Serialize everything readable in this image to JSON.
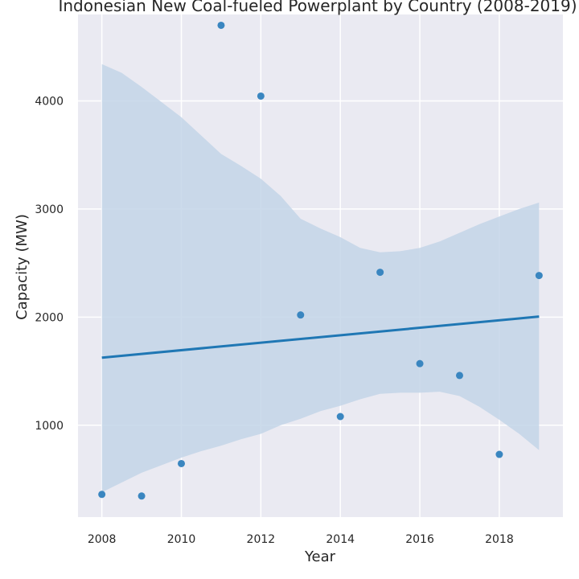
{
  "chart_data": {
    "type": "scatter",
    "title": "Indonesian New Coal-fueled Powerplant by Country (2008-2019)",
    "xlabel": "Year",
    "ylabel": "Capacity (MW)",
    "xlim": [
      2007.4,
      2019.6
    ],
    "ylim": [
      150,
      4800
    ],
    "xticks": [
      2008,
      2010,
      2012,
      2014,
      2016,
      2018
    ],
    "yticks": [
      1000,
      2000,
      3000,
      4000
    ],
    "grid": true,
    "legend": "none",
    "points": [
      {
        "x": 2008,
        "y": 360
      },
      {
        "x": 2009,
        "y": 345
      },
      {
        "x": 2010,
        "y": 645
      },
      {
        "x": 2011,
        "y": 4700
      },
      {
        "x": 2012,
        "y": 4045
      },
      {
        "x": 2013,
        "y": 2020
      },
      {
        "x": 2014,
        "y": 1080
      },
      {
        "x": 2015,
        "y": 2415
      },
      {
        "x": 2016,
        "y": 1570
      },
      {
        "x": 2017,
        "y": 1460
      },
      {
        "x": 2018,
        "y": 730
      },
      {
        "x": 2019,
        "y": 2385
      }
    ],
    "regression": {
      "start": {
        "x": 2008,
        "y": 1625
      },
      "end": {
        "x": 2019,
        "y": 2005
      }
    },
    "confidence_band": {
      "upper": [
        [
          2008,
          4340
        ],
        [
          2008.5,
          4260
        ],
        [
          2009,
          4130
        ],
        [
          2009.5,
          3990
        ],
        [
          2010,
          3850
        ],
        [
          2010.5,
          3680
        ],
        [
          2011,
          3510
        ],
        [
          2011.5,
          3400
        ],
        [
          2012,
          3280
        ],
        [
          2012.5,
          3120
        ],
        [
          2013,
          2910
        ],
        [
          2013.5,
          2820
        ],
        [
          2014,
          2740
        ],
        [
          2014.5,
          2640
        ],
        [
          2015,
          2600
        ],
        [
          2015.5,
          2610
        ],
        [
          2016,
          2640
        ],
        [
          2016.5,
          2700
        ],
        [
          2017,
          2780
        ],
        [
          2017.5,
          2860
        ],
        [
          2018,
          2930
        ],
        [
          2018.5,
          3000
        ],
        [
          2019,
          3060
        ]
      ],
      "lower": [
        [
          2008,
          380
        ],
        [
          2008.5,
          470
        ],
        [
          2009,
          560
        ],
        [
          2009.5,
          630
        ],
        [
          2010,
          700
        ],
        [
          2010.5,
          760
        ],
        [
          2011,
          810
        ],
        [
          2011.5,
          870
        ],
        [
          2012,
          920
        ],
        [
          2012.5,
          1000
        ],
        [
          2013,
          1060
        ],
        [
          2013.5,
          1130
        ],
        [
          2014,
          1180
        ],
        [
          2014.5,
          1240
        ],
        [
          2015,
          1290
        ],
        [
          2015.5,
          1300
        ],
        [
          2016,
          1300
        ],
        [
          2016.5,
          1310
        ],
        [
          2017,
          1270
        ],
        [
          2017.5,
          1170
        ],
        [
          2018,
          1050
        ],
        [
          2018.5,
          920
        ],
        [
          2019,
          770
        ]
      ]
    },
    "colors": {
      "background": "#eaeaf2",
      "grid": "#ffffff",
      "point": "#3a86c0",
      "line": "#1f77b4",
      "band": "#c3d5e7",
      "text": "#262626"
    }
  }
}
